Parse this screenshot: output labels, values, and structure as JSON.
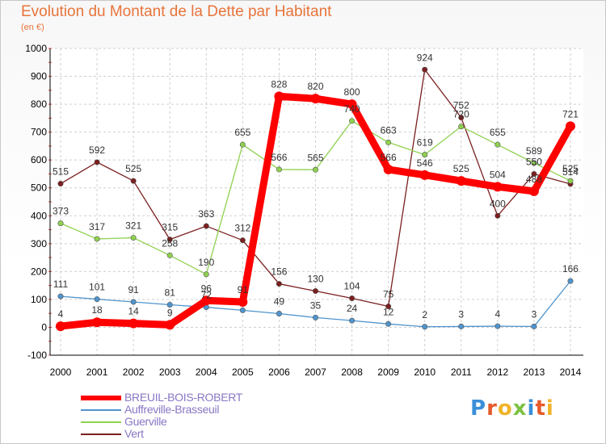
{
  "chart_data": {
    "type": "line",
    "title": "Evolution du Montant de la Dette par Habitant",
    "unit_label": "(en €)",
    "x": [
      "2000",
      "2001",
      "2002",
      "2003",
      "2004",
      "2005",
      "2006",
      "2007",
      "2008",
      "2009",
      "2010",
      "2011",
      "2012",
      "2013",
      "2014"
    ],
    "ylim": [
      -100,
      1000
    ],
    "yticks": [
      -100,
      0,
      100,
      200,
      300,
      400,
      500,
      600,
      700,
      800,
      900,
      1000
    ],
    "grid": true,
    "legend_position": "bottom-left",
    "series": [
      {
        "name": "BREUIL-BOIS-ROBERT",
        "color": "#ff0000",
        "values": [
          4,
          18,
          14,
          9,
          96,
          91,
          828,
          820,
          800,
          566,
          546,
          525,
          504,
          488,
          721
        ]
      },
      {
        "name": "Auffreville-Brasseuil",
        "color": "#4f94cd",
        "values": [
          111,
          101,
          91,
          81,
          72,
          61,
          49,
          35,
          24,
          12,
          2,
          3,
          4,
          3,
          166
        ]
      },
      {
        "name": "Guerville",
        "color": "#8fd14f",
        "values": [
          373,
          317,
          321,
          258,
          190,
          655,
          566,
          565,
          740,
          663,
          619,
          720,
          655,
          589,
          525
        ]
      },
      {
        "name": "Vert",
        "color": "#7b1f1f",
        "values": [
          515,
          592,
          525,
          315,
          363,
          312,
          156,
          130,
          104,
          75,
          924,
          752,
          400,
          550,
          514
        ]
      }
    ],
    "data_labels": [
      [
        "4",
        "18",
        "14",
        "9",
        "96",
        "91",
        "828",
        "820",
        "800",
        "566",
        "546",
        "525",
        "504",
        "488",
        "721"
      ],
      [
        "111",
        "101",
        "91",
        "81",
        "72",
        "",
        "49",
        "35",
        "24",
        "12",
        "2",
        "3",
        "4",
        "3",
        "166"
      ],
      [
        "373",
        "317",
        "321",
        "258",
        "190",
        "655",
        "566",
        "565",
        "740",
        "663",
        "619",
        "720",
        "655",
        "589",
        "525"
      ],
      [
        "515",
        "592",
        "525",
        "315",
        "363",
        "312",
        "156",
        "130",
        "104",
        "75",
        "924",
        "752",
        "400",
        "550",
        "514"
      ]
    ]
  },
  "logo_text": [
    "P",
    "r",
    "o",
    "x",
    "i",
    "t",
    "i"
  ]
}
